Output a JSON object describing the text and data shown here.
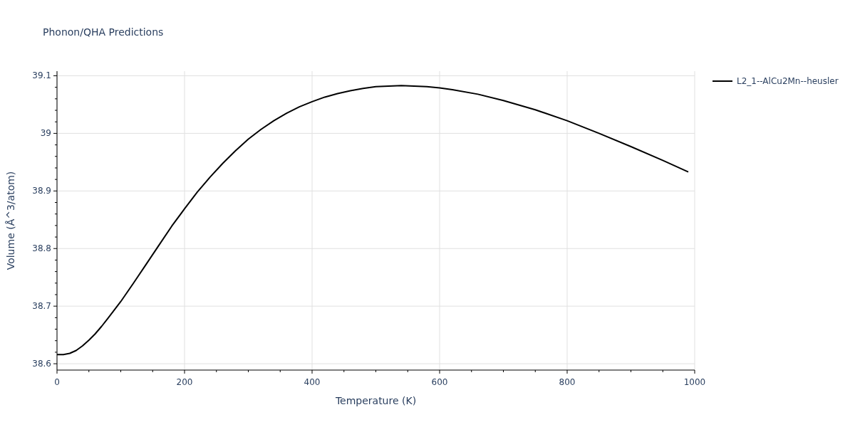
{
  "chart_data": {
    "type": "line",
    "title": "Phonon/QHA Predictions",
    "xlabel": "Temperature (K)",
    "ylabel": "Volume (Å^3/atom)",
    "x": [
      0,
      10,
      20,
      30,
      40,
      50,
      60,
      70,
      80,
      100,
      120,
      140,
      160,
      180,
      200,
      220,
      240,
      260,
      280,
      300,
      320,
      340,
      360,
      380,
      400,
      420,
      440,
      460,
      480,
      500,
      520,
      540,
      560,
      580,
      600,
      620,
      660,
      700,
      750,
      800,
      850,
      900,
      950,
      990
    ],
    "series": [
      {
        "name": "L2_1--AlCu2Mn--heusler",
        "color": "#000000",
        "values": [
          38.616,
          38.616,
          38.618,
          38.623,
          38.631,
          38.641,
          38.652,
          38.665,
          38.679,
          38.708,
          38.74,
          38.773,
          38.806,
          38.839,
          38.869,
          38.898,
          38.924,
          38.948,
          38.97,
          38.99,
          39.007,
          39.022,
          39.035,
          39.046,
          39.055,
          39.063,
          39.069,
          39.074,
          39.078,
          39.081,
          39.082,
          39.083,
          39.082,
          39.081,
          39.079,
          39.076,
          39.068,
          39.057,
          39.041,
          39.022,
          39.0,
          38.977,
          38.953,
          38.933
        ]
      }
    ],
    "xlim": [
      0,
      1000
    ],
    "ylim": [
      38.589,
      39.108
    ],
    "xticks": [
      0,
      {
        "value": 50,
        "label": null
      },
      {
        "value": 100,
        "label": null
      },
      {
        "value": 150,
        "label": null
      },
      200,
      {
        "value": 250,
        "label": null
      },
      {
        "value": 300,
        "label": null
      },
      {
        "value": 350,
        "label": null
      },
      400,
      {
        "value": 450,
        "label": null
      },
      {
        "value": 500,
        "label": null
      },
      {
        "value": 550,
        "label": null
      },
      600,
      {
        "value": 650,
        "label": null
      },
      {
        "value": 700,
        "label": null
      },
      {
        "value": 750,
        "label": null
      },
      800,
      {
        "value": 850,
        "label": null
      },
      {
        "value": 900,
        "label": null
      },
      {
        "value": 950,
        "label": null
      },
      1000
    ],
    "yticks": [
      38.6,
      {
        "value": 38.62,
        "label": null
      },
      {
        "value": 38.64,
        "label": null
      },
      {
        "value": 38.66,
        "label": null
      },
      {
        "value": 38.68,
        "label": null
      },
      38.7,
      {
        "value": 38.72,
        "label": null
      },
      {
        "value": 38.74,
        "label": null
      },
      {
        "value": 38.76,
        "label": null
      },
      {
        "value": 38.78,
        "label": null
      },
      38.8,
      {
        "value": 38.82,
        "label": null
      },
      {
        "value": 38.84,
        "label": null
      },
      {
        "value": 38.86,
        "label": null
      },
      {
        "value": 38.88,
        "label": null
      },
      38.9,
      {
        "value": 38.92,
        "label": null
      },
      {
        "value": 38.94,
        "label": null
      },
      {
        "value": 38.96,
        "label": null
      },
      {
        "value": 38.98,
        "label": null
      },
      39,
      {
        "value": 39.02,
        "label": null
      },
      {
        "value": 39.04,
        "label": null
      },
      {
        "value": 39.06,
        "label": null
      },
      {
        "value": 39.08,
        "label": null
      },
      39.1
    ],
    "grid": true,
    "legend": "top right",
    "line_style": "solid",
    "marker": "none"
  }
}
